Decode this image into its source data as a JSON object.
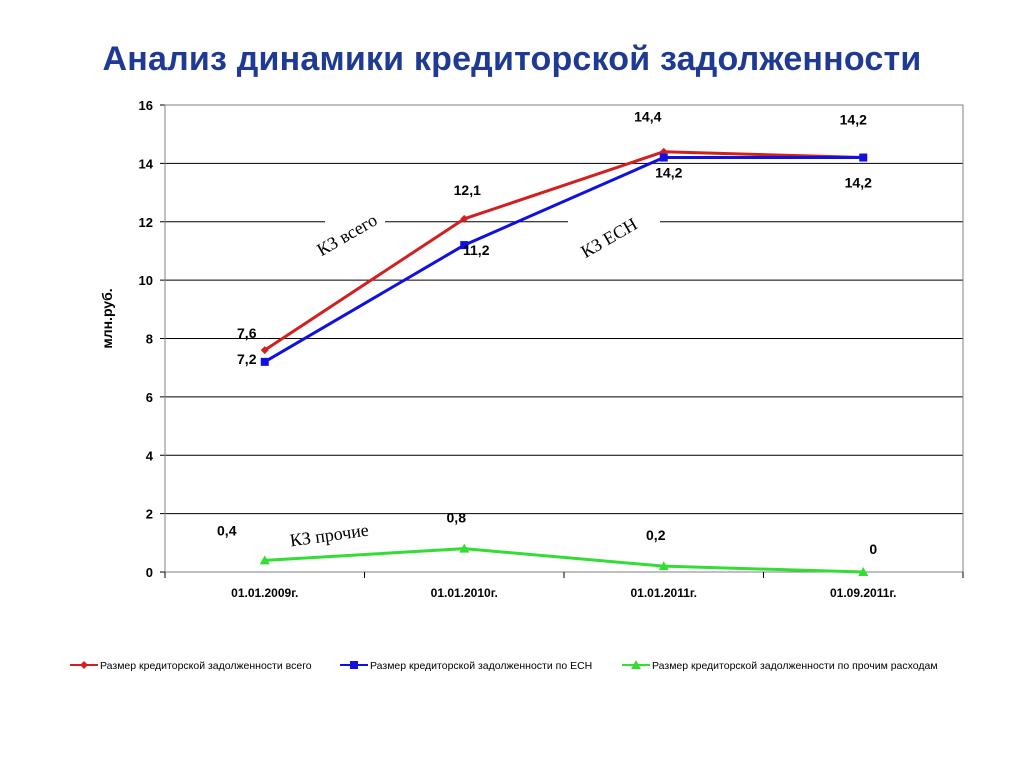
{
  "title": "Анализ динамики кредиторской задолженности",
  "chart_data": {
    "type": "line",
    "title": "Анализ динамики кредиторской задолженности",
    "ylabel": "млн.руб.",
    "xlabel": "",
    "ylim": [
      0,
      16
    ],
    "yticks": [
      0,
      2,
      4,
      6,
      8,
      10,
      12,
      14,
      16
    ],
    "grid": true,
    "legend_position": "bottom",
    "categories": [
      "01.01.2009г.",
      "01.01.2010г.",
      "01.01.2011г.",
      "01.09.2011г."
    ],
    "series": [
      {
        "name": "Размер кредиторской задолженности всего",
        "color": "#d02020",
        "marker": "diamond",
        "values": [
          7.6,
          12.1,
          14.4,
          14.2
        ],
        "labels": [
          "7,6",
          "12,1",
          "14,4",
          "14,2"
        ]
      },
      {
        "name": "Размер кредиторской задолженности по ЕСН",
        "color": "#1010e0",
        "marker": "square",
        "values": [
          7.2,
          11.2,
          14.2,
          14.2
        ],
        "labels": [
          "7,2",
          "11,2",
          "14,2",
          "14,2"
        ]
      },
      {
        "name": "Размер кредиторской задолженности по прочим расходам",
        "color": "#33dd33",
        "marker": "triangle",
        "values": [
          0.4,
          0.8,
          0.2,
          0
        ],
        "labels": [
          "0,4",
          "0,8",
          "0,2",
          "0"
        ]
      }
    ],
    "annotations": [
      "КЗ  всего",
      "КЗ  ЕСН",
      "КЗ   прочие"
    ]
  }
}
